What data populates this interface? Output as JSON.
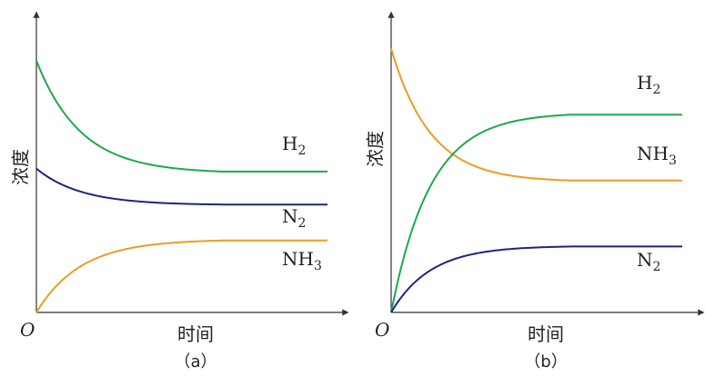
{
  "chart_data": [
    {
      "type": "line",
      "panel_label": "（a）",
      "xlabel": "时间",
      "ylabel": "浓度",
      "origin_label": "O",
      "series": [
        {
          "name": "H2",
          "color": "#1aab4b",
          "curve": "decay",
          "start": 0.84,
          "end": 0.47,
          "plateau_x": 0.64,
          "rate": 4.2
        },
        {
          "name": "N2",
          "color": "#1c2580",
          "curve": "decay",
          "start": 0.48,
          "end": 0.36,
          "plateau_x": 0.64,
          "rate": 4.2
        },
        {
          "name": "NH3",
          "color": "#ee9b26",
          "curve": "rise",
          "start": 0,
          "end": 0.24,
          "plateau_x": 0.64,
          "rate": 4.2
        }
      ],
      "legend": [
        {
          "series": "H2",
          "base": "H",
          "sub": "2"
        },
        {
          "series": "N2",
          "base": "N",
          "sub": "2"
        },
        {
          "series": "NH3",
          "base": "NH",
          "sub": "3"
        }
      ]
    },
    {
      "type": "line",
      "panel_label": "（b）",
      "xlabel": "时间",
      "ylabel": "浓度",
      "origin_label": "O",
      "series": [
        {
          "name": "NH3",
          "color": "#ee9b26",
          "curve": "decay",
          "start": 0.88,
          "end": 0.44,
          "plateau_x": 0.62,
          "rate": 4.6
        },
        {
          "name": "H2",
          "color": "#1aab4b",
          "curve": "rise",
          "start": 0,
          "end": 0.66,
          "plateau_x": 0.62,
          "rate": 4.6
        },
        {
          "name": "N2",
          "color": "#1c2580",
          "curve": "rise",
          "start": 0,
          "end": 0.22,
          "plateau_x": 0.62,
          "rate": 4.6
        }
      ],
      "legend": [
        {
          "series": "H2",
          "base": "H",
          "sub": "2"
        },
        {
          "series": "NH3",
          "base": "NH",
          "sub": "3"
        },
        {
          "series": "N2",
          "base": "N",
          "sub": "2"
        }
      ]
    }
  ]
}
